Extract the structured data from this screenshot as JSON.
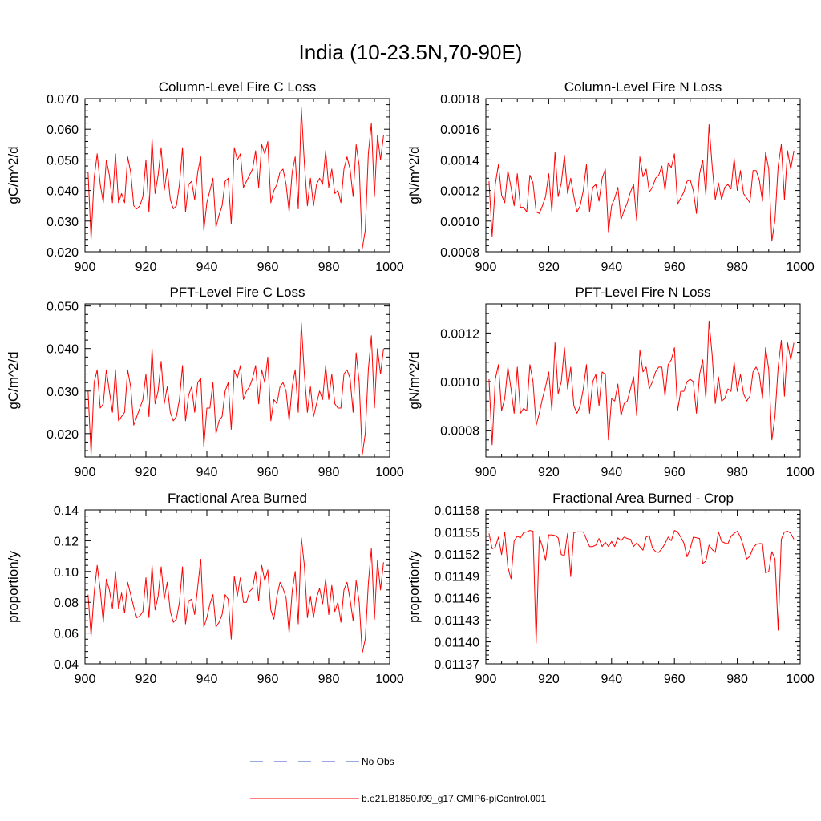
{
  "figure": {
    "title": "India (10-23.5N,70-90E)"
  },
  "legend": [
    {
      "label": "No Obs",
      "color": "#3a4fc4",
      "style": "dashed"
    },
    {
      "label": "b.e21.B1850.f09_g17.CMIP6-piControl.001",
      "color": "#ff0000",
      "style": "solid"
    }
  ],
  "chart_data": [
    {
      "type": "line",
      "title": "Column-Level Fire C Loss",
      "xlabel": "",
      "ylabel": "gC/m^2/d",
      "xlim": [
        900,
        1000
      ],
      "ylim": [
        0.02,
        0.07
      ],
      "xticks": [
        900,
        920,
        940,
        960,
        980,
        1000
      ],
      "xtick_labels": [
        "900",
        "920",
        "940",
        "960",
        "980",
        "1000"
      ],
      "yticks": [
        0.02,
        0.03,
        0.04,
        0.05,
        0.06,
        0.07
      ],
      "ytick_labels": [
        "0.020",
        "0.030",
        "0.040",
        "0.050",
        "0.060",
        "0.070"
      ],
      "x_start": 901,
      "series": [
        {
          "name": "b.e21.B1850.f09_g17.CMIP6-piControl.001",
          "color": "#ff0000",
          "values": [
            0.046,
            0.024,
            0.044,
            0.052,
            0.042,
            0.036,
            0.05,
            0.045,
            0.036,
            0.052,
            0.036,
            0.039,
            0.036,
            0.051,
            0.046,
            0.035,
            0.034,
            0.035,
            0.038,
            0.05,
            0.033,
            0.057,
            0.039,
            0.045,
            0.054,
            0.04,
            0.047,
            0.037,
            0.034,
            0.035,
            0.042,
            0.054,
            0.033,
            0.042,
            0.043,
            0.037,
            0.046,
            0.051,
            0.027,
            0.036,
            0.04,
            0.044,
            0.028,
            0.032,
            0.035,
            0.043,
            0.044,
            0.029,
            0.054,
            0.05,
            0.052,
            0.041,
            0.043,
            0.045,
            0.047,
            0.053,
            0.041,
            0.055,
            0.052,
            0.056,
            0.036,
            0.04,
            0.042,
            0.046,
            0.047,
            0.042,
            0.033,
            0.046,
            0.051,
            0.034,
            0.067,
            0.049,
            0.035,
            0.044,
            0.035,
            0.042,
            0.044,
            0.042,
            0.053,
            0.041,
            0.047,
            0.039,
            0.04,
            0.036,
            0.047,
            0.051,
            0.047,
            0.038,
            0.055,
            0.048,
            0.021,
            0.027,
            0.052,
            0.062,
            0.038,
            0.058,
            0.05,
            0.058
          ]
        }
      ]
    },
    {
      "type": "line",
      "title": "Column-Level Fire N Loss",
      "xlabel": "",
      "ylabel": "gN/m^2/d",
      "xlim": [
        900,
        1000
      ],
      "ylim": [
        0.0008,
        0.0018
      ],
      "xticks": [
        900,
        920,
        940,
        960,
        980,
        1000
      ],
      "xtick_labels": [
        "900",
        "920",
        "940",
        "960",
        "980",
        "1000"
      ],
      "yticks": [
        0.0008,
        0.001,
        0.0012,
        0.0014,
        0.0016,
        0.0018
      ],
      "ytick_labels": [
        "0.0008",
        "0.0010",
        "0.0012",
        "0.0014",
        "0.0016",
        "0.0018"
      ],
      "x_start": 901,
      "series": [
        {
          "name": "b.e21.B1850.f09_g17.CMIP6-piControl.001",
          "color": "#ff0000",
          "values": [
            0.00126,
            0.0009,
            0.00124,
            0.00137,
            0.00117,
            0.00112,
            0.00133,
            0.00122,
            0.0011,
            0.00131,
            0.00109,
            0.00109,
            0.00106,
            0.0013,
            0.00125,
            0.00106,
            0.00105,
            0.0011,
            0.00116,
            0.00131,
            0.00106,
            0.00145,
            0.00116,
            0.00125,
            0.00143,
            0.00118,
            0.00128,
            0.00116,
            0.00106,
            0.0011,
            0.0012,
            0.00137,
            0.00106,
            0.00122,
            0.00124,
            0.00113,
            0.00128,
            0.00134,
            0.00093,
            0.0011,
            0.00115,
            0.00122,
            0.00101,
            0.00107,
            0.00112,
            0.00119,
            0.00124,
            0.001,
            0.00142,
            0.00129,
            0.00134,
            0.00119,
            0.00122,
            0.00128,
            0.0013,
            0.00136,
            0.0012,
            0.00138,
            0.00135,
            0.00144,
            0.00111,
            0.00115,
            0.00119,
            0.00126,
            0.00127,
            0.0012,
            0.00105,
            0.00131,
            0.0014,
            0.00117,
            0.00163,
            0.00136,
            0.00114,
            0.00125,
            0.00114,
            0.00122,
            0.00124,
            0.00121,
            0.00141,
            0.0012,
            0.00133,
            0.00118,
            0.00115,
            0.00112,
            0.00133,
            0.00133,
            0.00127,
            0.00113,
            0.00145,
            0.00134,
            0.00087,
            0.00101,
            0.00136,
            0.0015,
            0.00114,
            0.00146,
            0.00134,
            0.00146
          ]
        }
      ]
    },
    {
      "type": "line",
      "title": "PFT-Level Fire C Loss",
      "xlabel": "",
      "ylabel": "gC/m^2/d",
      "xlim": [
        900,
        1000
      ],
      "ylim": [
        0.0145,
        0.0505
      ],
      "xticks": [
        900,
        920,
        940,
        960,
        980,
        1000
      ],
      "xtick_labels": [
        "900",
        "920",
        "940",
        "960",
        "980",
        "1000"
      ],
      "yticks": [
        0.02,
        0.03,
        0.04,
        0.05
      ],
      "ytick_labels": [
        "0.020",
        "0.030",
        "0.040",
        "0.050"
      ],
      "x_start": 901,
      "series": [
        {
          "name": "b.e21.B1850.f09_g17.CMIP6-piControl.001",
          "color": "#ff0000",
          "values": [
            0.03,
            0.015,
            0.032,
            0.035,
            0.026,
            0.027,
            0.035,
            0.03,
            0.025,
            0.035,
            0.023,
            0.024,
            0.025,
            0.035,
            0.031,
            0.022,
            0.024,
            0.026,
            0.028,
            0.034,
            0.024,
            0.04,
            0.027,
            0.03,
            0.037,
            0.027,
            0.031,
            0.025,
            0.023,
            0.024,
            0.028,
            0.036,
            0.023,
            0.029,
            0.031,
            0.025,
            0.032,
            0.033,
            0.017,
            0.026,
            0.026,
            0.032,
            0.02,
            0.023,
            0.024,
            0.03,
            0.032,
            0.021,
            0.035,
            0.033,
            0.036,
            0.028,
            0.03,
            0.031,
            0.033,
            0.036,
            0.027,
            0.035,
            0.032,
            0.038,
            0.023,
            0.028,
            0.027,
            0.031,
            0.032,
            0.03,
            0.023,
            0.031,
            0.035,
            0.025,
            0.046,
            0.034,
            0.025,
            0.031,
            0.024,
            0.027,
            0.03,
            0.028,
            0.036,
            0.028,
            0.034,
            0.027,
            0.026,
            0.026,
            0.034,
            0.035,
            0.033,
            0.025,
            0.039,
            0.032,
            0.015,
            0.02,
            0.035,
            0.043,
            0.026,
            0.04,
            0.034,
            0.04
          ]
        }
      ]
    },
    {
      "type": "line",
      "title": "PFT-Level Fire N Loss",
      "xlabel": "",
      "ylabel": "gN/m^2/d",
      "xlim": [
        900,
        1000
      ],
      "ylim": [
        0.00069,
        0.00132
      ],
      "xticks": [
        900,
        920,
        940,
        960,
        980,
        1000
      ],
      "xtick_labels": [
        "900",
        "920",
        "940",
        "960",
        "980",
        "1000"
      ],
      "yticks": [
        0.0008,
        0.001,
        0.0012
      ],
      "ytick_labels": [
        "0.0008",
        "0.0010",
        "0.0012"
      ],
      "x_start": 901,
      "series": [
        {
          "name": "b.e21.B1850.f09_g17.CMIP6-piControl.001",
          "color": "#ff0000",
          "values": [
            0.00101,
            0.00074,
            0.00101,
            0.00107,
            0.00088,
            0.00093,
            0.00106,
            0.00097,
            0.00087,
            0.00106,
            0.00087,
            0.00089,
            0.00088,
            0.00107,
            0.001,
            0.00082,
            0.00087,
            0.00093,
            0.00098,
            0.00104,
            0.00088,
            0.00116,
            0.00095,
            0.001,
            0.00114,
            0.00097,
            0.00106,
            0.0009,
            0.00087,
            0.0009,
            0.00097,
            0.00107,
            0.00087,
            0.001,
            0.00103,
            0.0009,
            0.00104,
            0.00103,
            0.00076,
            0.00093,
            0.00092,
            0.00099,
            0.00086,
            0.00091,
            0.00092,
            0.00097,
            0.00102,
            0.00086,
            0.00113,
            0.00104,
            0.00106,
            0.00097,
            0.001,
            0.00104,
            0.00106,
            0.00106,
            0.00094,
            0.00107,
            0.00109,
            0.00114,
            0.00088,
            0.00096,
            0.00096,
            0.001,
            0.00101,
            0.001,
            0.00087,
            0.00103,
            0.00109,
            0.00093,
            0.00125,
            0.00111,
            0.00091,
            0.00102,
            0.00092,
            0.00093,
            0.00097,
            0.00096,
            0.00108,
            0.00096,
            0.00103,
            0.00095,
            0.00092,
            0.00094,
            0.00104,
            0.00106,
            0.00103,
            0.00093,
            0.00114,
            0.00105,
            0.00076,
            0.00086,
            0.00106,
            0.00117,
            0.00094,
            0.00116,
            0.00109,
            0.00116
          ]
        }
      ]
    },
    {
      "type": "line",
      "title": "Fractional Area Burned",
      "xlabel": "",
      "ylabel": "proportion/y",
      "xlim": [
        900,
        1000
      ],
      "ylim": [
        0.04,
        0.14
      ],
      "xticks": [
        900,
        920,
        940,
        960,
        980,
        1000
      ],
      "xtick_labels": [
        "900",
        "920",
        "940",
        "960",
        "980",
        "1000"
      ],
      "yticks": [
        0.04,
        0.06,
        0.08,
        0.1,
        0.12,
        0.14
      ],
      "ytick_labels": [
        "0.04",
        "0.06",
        "0.08",
        "0.10",
        "0.12",
        "0.14"
      ],
      "x_start": 901,
      "series": [
        {
          "name": "b.e21.B1850.f09_g17.CMIP6-piControl.001",
          "color": "#ff0000",
          "values": [
            0.085,
            0.058,
            0.086,
            0.104,
            0.088,
            0.067,
            0.095,
            0.088,
            0.076,
            0.1,
            0.076,
            0.086,
            0.073,
            0.093,
            0.085,
            0.077,
            0.07,
            0.071,
            0.074,
            0.096,
            0.07,
            0.104,
            0.075,
            0.084,
            0.103,
            0.082,
            0.093,
            0.074,
            0.067,
            0.069,
            0.08,
            0.103,
            0.066,
            0.081,
            0.082,
            0.072,
            0.09,
            0.108,
            0.064,
            0.07,
            0.079,
            0.085,
            0.064,
            0.067,
            0.072,
            0.085,
            0.082,
            0.056,
            0.097,
            0.084,
            0.096,
            0.08,
            0.08,
            0.087,
            0.089,
            0.1,
            0.081,
            0.104,
            0.094,
            0.101,
            0.075,
            0.069,
            0.084,
            0.093,
            0.089,
            0.083,
            0.06,
            0.087,
            0.1,
            0.066,
            0.122,
            0.104,
            0.07,
            0.084,
            0.07,
            0.083,
            0.089,
            0.079,
            0.095,
            0.072,
            0.091,
            0.074,
            0.08,
            0.067,
            0.088,
            0.093,
            0.082,
            0.068,
            0.094,
            0.08,
            0.047,
            0.056,
            0.092,
            0.115,
            0.069,
            0.107,
            0.088,
            0.106
          ]
        }
      ]
    },
    {
      "type": "line",
      "title": "Fractional Area Burned - Crop",
      "xlabel": "",
      "ylabel": "proportion/y",
      "xlim": [
        900,
        1000
      ],
      "ylim": [
        0.01137,
        0.01158
      ],
      "xticks": [
        900,
        920,
        940,
        960,
        980,
        1000
      ],
      "xtick_labels": [
        "900",
        "920",
        "940",
        "960",
        "980",
        "1000"
      ],
      "yticks": [
        0.01137,
        0.0114,
        0.01143,
        0.01146,
        0.01149,
        0.01152,
        0.01155,
        0.01158
      ],
      "ytick_labels": [
        "0.01137",
        "0.01140",
        "0.01143",
        "0.01146",
        "0.01149",
        "0.01152",
        "0.01155",
        "0.01158"
      ],
      "x_start": 901,
      "series": [
        {
          "name": "b.e21.B1850.f09_g17.CMIP6-piControl.001",
          "color": "#ff0000",
          "values": [
            0.011548,
            0.011527,
            0.011529,
            0.011543,
            0.011519,
            0.01155,
            0.011502,
            0.011486,
            0.011538,
            0.011544,
            0.011542,
            0.011549,
            0.01155,
            0.011552,
            0.011551,
            0.011398,
            0.011543,
            0.01153,
            0.011511,
            0.011546,
            0.011546,
            0.011545,
            0.011542,
            0.011519,
            0.011518,
            0.011548,
            0.011489,
            0.011549,
            0.01155,
            0.01155,
            0.01155,
            0.01154,
            0.01153,
            0.01153,
            0.011532,
            0.011541,
            0.01153,
            0.011536,
            0.01153,
            0.011537,
            0.01153,
            0.011542,
            0.011538,
            0.011543,
            0.011541,
            0.01154,
            0.01153,
            0.011535,
            0.01153,
            0.011525,
            0.011543,
            0.011545,
            0.011528,
            0.011523,
            0.011522,
            0.011527,
            0.011534,
            0.011543,
            0.011538,
            0.011552,
            0.01155,
            0.011543,
            0.011535,
            0.011516,
            0.011527,
            0.011543,
            0.011542,
            0.011541,
            0.011507,
            0.01151,
            0.011532,
            0.011526,
            0.011522,
            0.01155,
            0.011537,
            0.011535,
            0.011534,
            0.011544,
            0.011548,
            0.011551,
            0.011543,
            0.01153,
            0.011513,
            0.011517,
            0.011528,
            0.011533,
            0.011534,
            0.011534,
            0.011494,
            0.011496,
            0.011523,
            0.011513,
            0.011416,
            0.01154,
            0.01155,
            0.011551,
            0.011548,
            0.01154
          ]
        }
      ]
    }
  ]
}
